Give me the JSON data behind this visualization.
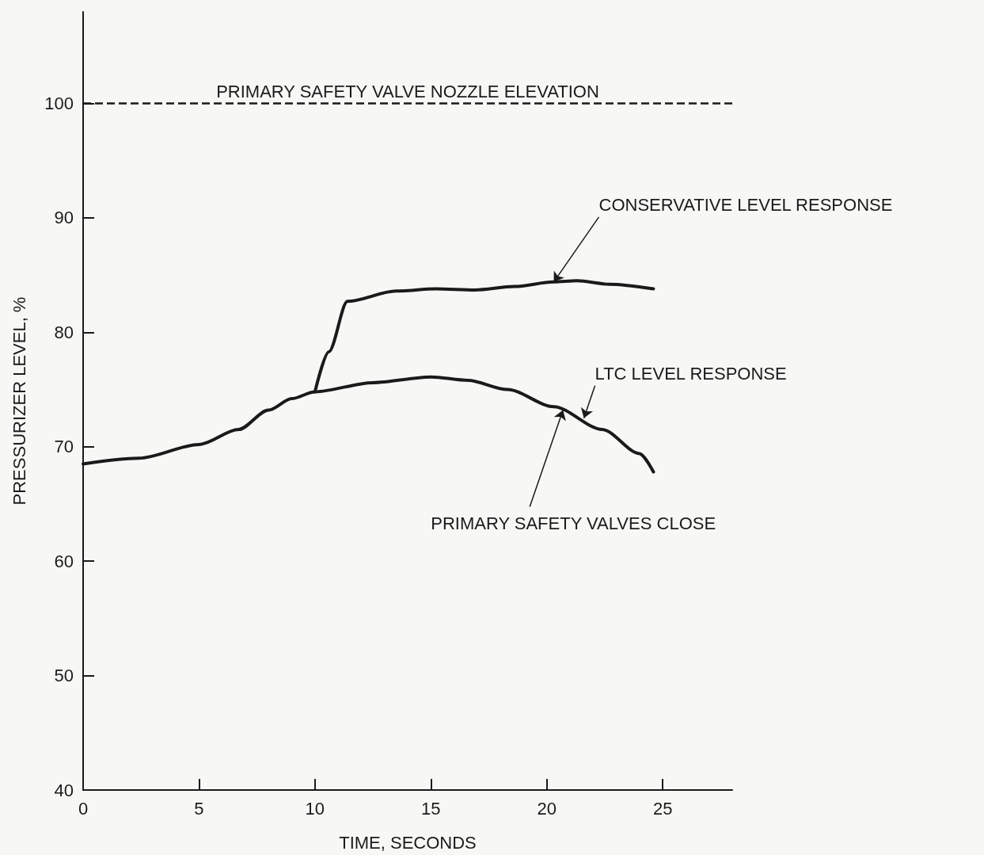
{
  "chart_data": {
    "type": "line",
    "xlabel": "TIME, SECONDS",
    "ylabel": "PRESSURIZER LEVEL, %",
    "xlim": [
      0,
      28
    ],
    "xticks": [
      0,
      5,
      10,
      15,
      20,
      25
    ],
    "ylim": [
      40,
      108
    ],
    "yticks": [
      40,
      50,
      60,
      70,
      80,
      90,
      100
    ],
    "grid": false,
    "marker": "none",
    "line_style": "solid",
    "series": [
      {
        "color": "#1a1a1a",
        "x": [
          0,
          2.4,
          5,
          6.7,
          8,
          9,
          10,
          12.5,
          15,
          16.6,
          18.3,
          20.3,
          22.4,
          24,
          24.6
        ],
        "values": [
          68.5,
          69.0,
          70.2,
          71.5,
          73.2,
          74.2,
          74.8,
          75.6,
          76.1,
          75.8,
          75.0,
          73.5,
          71.5,
          69.4,
          67.8
        ]
      },
      {
        "color": "#1a1a1a",
        "x": [
          10,
          10.6,
          11.4,
          13.5,
          15.2,
          16.9,
          18.6,
          20.3,
          21.3,
          22.7,
          24.6
        ],
        "values": [
          74.8,
          78.3,
          82.7,
          83.6,
          83.8,
          83.7,
          84.0,
          84.4,
          84.5,
          84.2,
          83.8
        ]
      }
    ],
    "ref_lines": [
      {
        "axis": "y",
        "value": 100,
        "label": "PRIMARY SAFETY VALVE NOZZLE ELEVATION",
        "line_style": "dashed",
        "color": "#1a1a1a"
      }
    ],
    "annotations": [
      {
        "text": "CONSERVATIVE LEVEL RESPONSE",
        "x": 20.3,
        "y": 84.4
      },
      {
        "text": "LTC LEVEL RESPONSE",
        "x": 21.6,
        "y": 72.5
      },
      {
        "text": "PRIMARY SAFETY VALVES CLOSE",
        "x": 20.7,
        "y": 73.2
      }
    ]
  }
}
